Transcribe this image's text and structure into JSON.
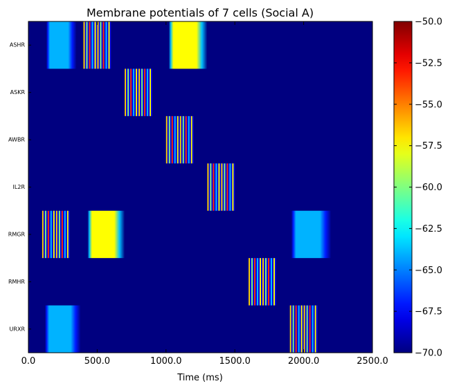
{
  "chart_data": {
    "type": "heatmap",
    "title": "Membrane potentials of 7 cells (Social A)",
    "xlabel": "Time (ms)",
    "ylabel": "",
    "xlim": [
      0,
      2500
    ],
    "x_ticks": [
      0,
      500,
      1000,
      1500,
      2000,
      2500
    ],
    "x_tick_labels": [
      "0.0",
      "500.0",
      "1000.0",
      "1500.0",
      "2000.0",
      "2500.0"
    ],
    "cells": [
      "ASHR",
      "ASKR",
      "AWBR",
      "IL2R",
      "RMGR",
      "RMHR",
      "URXR"
    ],
    "colorbar": {
      "colormap": "jet",
      "min": -70.0,
      "max": -50.0,
      "ticks": [
        -50,
        -52.5,
        -55,
        -57.5,
        -60,
        -62.5,
        -65,
        -67.5,
        -70
      ],
      "tick_labels": [
        "−50.0",
        "−52.5",
        "−55.0",
        "−57.5",
        "−60.0",
        "−62.5",
        "−65.0",
        "−67.5",
        "−70.0"
      ]
    },
    "baseline_mV": -70.0,
    "events": [
      {
        "cell": "ASHR",
        "kind": "sustained",
        "start": 130,
        "end": 350,
        "peak_mV": -64.0
      },
      {
        "cell": "ASHR",
        "kind": "spiking",
        "start": 400,
        "end": 600
      },
      {
        "cell": "ASHR",
        "kind": "sustained",
        "start": 1020,
        "end": 1300,
        "peak_mV": -57.5
      },
      {
        "cell": "ASKR",
        "kind": "spiking",
        "start": 700,
        "end": 900
      },
      {
        "cell": "AWBR",
        "kind": "spiking",
        "start": 1000,
        "end": 1200
      },
      {
        "cell": "IL2R",
        "kind": "spiking",
        "start": 1300,
        "end": 1500
      },
      {
        "cell": "RMGR",
        "kind": "spiking",
        "start": 100,
        "end": 300
      },
      {
        "cell": "RMGR",
        "kind": "sustained",
        "start": 430,
        "end": 700,
        "peak_mV": -57.5
      },
      {
        "cell": "RMGR",
        "kind": "sustained",
        "start": 1910,
        "end": 2200,
        "peak_mV": -64.0
      },
      {
        "cell": "RMHR",
        "kind": "spiking",
        "start": 1600,
        "end": 1800
      },
      {
        "cell": "URXR",
        "kind": "sustained",
        "start": 120,
        "end": 380,
        "peak_mV": -64.0
      },
      {
        "cell": "URXR",
        "kind": "spiking",
        "start": 1900,
        "end": 2100
      }
    ]
  }
}
